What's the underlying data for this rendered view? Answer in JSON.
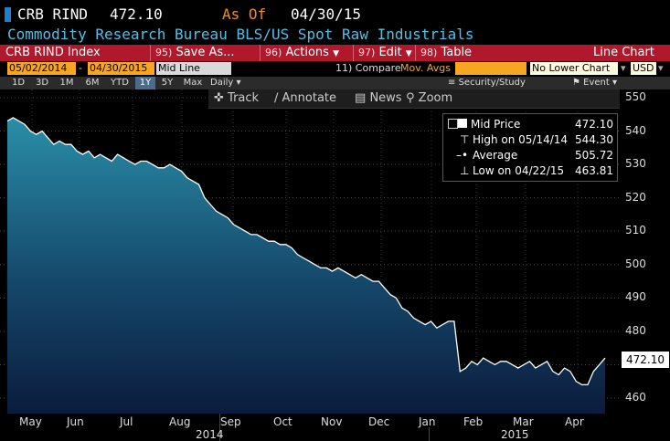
{
  "header": {
    "ticker": "CRB RIND",
    "price": "472.10",
    "asof_label": "As Of",
    "asof_date": "04/30/15",
    "subtitle": "Commodity Research Bureau BLS/US Spot Raw Industrials"
  },
  "menu": {
    "index_name": "CRB RIND Index",
    "save_num": "95)",
    "save_label": "Save As...",
    "actions_num": "96)",
    "actions_label": "Actions",
    "edit_num": "97)",
    "edit_label": "Edit",
    "table_num": "98)",
    "table_label": "Table",
    "chart_type": "Line Chart"
  },
  "controls": {
    "start_date": "05/02/2014",
    "date_sep": "-",
    "end_date": "04/30/2015",
    "line_type": "Mid Line",
    "compare_num": "11)",
    "compare_label": "Compare",
    "compare_value": "Mov. Avgs",
    "lower_chart": "No Lower Chart",
    "currency": "USD"
  },
  "range": {
    "buttons": [
      "1D",
      "3D",
      "1M",
      "6M",
      "YTD",
      "1Y",
      "5Y",
      "Max"
    ],
    "active": "1Y",
    "frequency": "Daily",
    "security_label": "Security/Study",
    "event_label": "Event"
  },
  "tools": {
    "track": "Track",
    "annotate": "Annotate",
    "news": "News",
    "zoom": "Zoom"
  },
  "legend": {
    "rows": [
      {
        "label": "Mid Price",
        "value": "472.10"
      },
      {
        "label": "High on 05/14/14",
        "value": "544.30"
      },
      {
        "label": "Average",
        "value": "505.72"
      },
      {
        "label": "Low on 04/22/15",
        "value": "463.81"
      }
    ]
  },
  "last_value_tag": "472.10",
  "colors": {
    "menu_bar": "#b2182b",
    "accent_orange": "#f28c1e",
    "subtitle_cyan": "#4fc0e8",
    "area_top": "#2a8ea8",
    "area_bottom": "#0b1c3d",
    "line": "#ffffff"
  },
  "chart_data": {
    "type": "area",
    "y_ticks": [
      "550",
      "540",
      "530",
      "520",
      "510",
      "500",
      "490",
      "480",
      "470",
      "460"
    ],
    "ylim": [
      457,
      552
    ],
    "x_month_labels": [
      "May",
      "Jun",
      "Jul",
      "Aug",
      "Sep",
      "Oct",
      "Nov",
      "Dec",
      "Jan",
      "Feb",
      "Mar",
      "Apr"
    ],
    "year_labels": [
      "2014",
      "2015"
    ],
    "series": [
      {
        "values": [
          543,
          544,
          543,
          542,
          540,
          539,
          540,
          538,
          536,
          537,
          536,
          536,
          534,
          533,
          534,
          532,
          533,
          532,
          531,
          533,
          532,
          531,
          530,
          531,
          531,
          530,
          529,
          529,
          530,
          529,
          528,
          526,
          525,
          524,
          520,
          518,
          516,
          515,
          514,
          512,
          511,
          510,
          509,
          509,
          508,
          507,
          507,
          506,
          506,
          505,
          503,
          502,
          501,
          500,
          499,
          499,
          498,
          499,
          498,
          497,
          496,
          497,
          496,
          495,
          495,
          493,
          491,
          490,
          487,
          486,
          484,
          483,
          482,
          483,
          481,
          482,
          483,
          483,
          468,
          469,
          471,
          470,
          472,
          471,
          470,
          471,
          471,
          470,
          469,
          470,
          471,
          469,
          470,
          471,
          468,
          467,
          469,
          468,
          465,
          464,
          464,
          468,
          470,
          472
        ]
      }
    ]
  }
}
